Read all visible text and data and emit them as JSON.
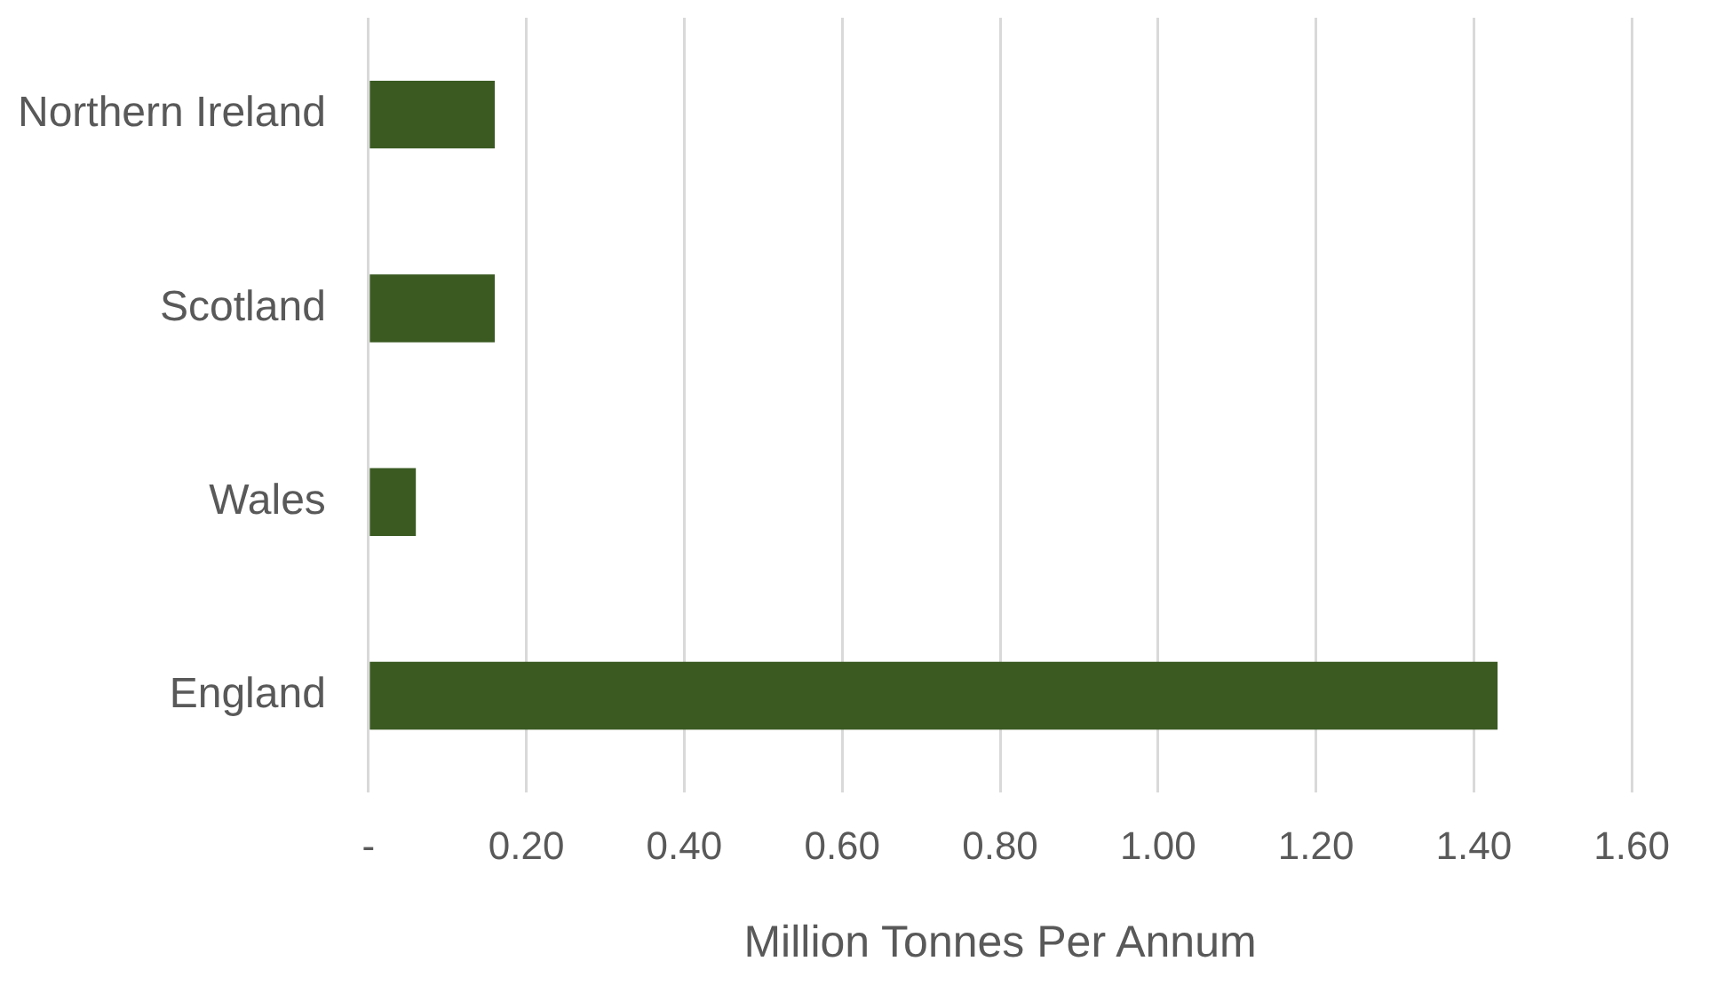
{
  "chart_data": {
    "type": "bar",
    "orientation": "horizontal",
    "categories": [
      "Northern Ireland",
      "Scotland",
      "Wales",
      "England"
    ],
    "values": [
      0.16,
      0.16,
      0.06,
      1.43
    ],
    "color": "#3a5a22",
    "xlabel": "Million Tonnes Per Annum",
    "xlim": [
      0,
      1.6
    ],
    "xticks": [
      {
        "value": 0,
        "label": "-"
      },
      {
        "value": 0.2,
        "label": "0.20"
      },
      {
        "value": 0.4,
        "label": "0.40"
      },
      {
        "value": 0.6,
        "label": "0.60"
      },
      {
        "value": 0.8,
        "label": "0.80"
      },
      {
        "value": 1.0,
        "label": "1.00"
      },
      {
        "value": 1.2,
        "label": "1.20"
      },
      {
        "value": 1.4,
        "label": "1.40"
      },
      {
        "value": 1.6,
        "label": "1.60"
      }
    ],
    "grid": "x"
  }
}
